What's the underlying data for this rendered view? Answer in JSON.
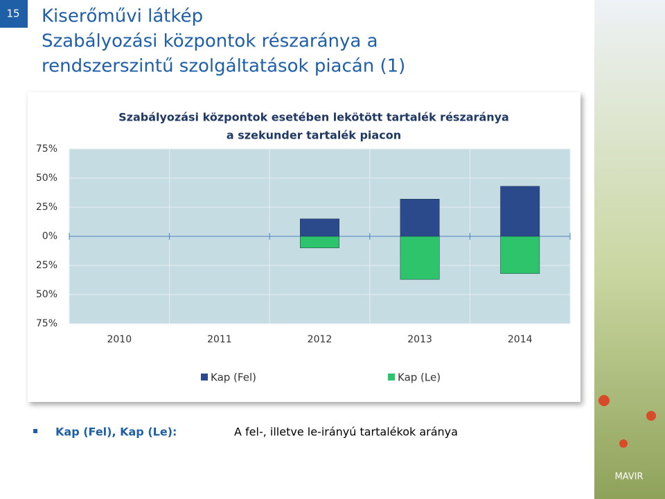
{
  "slide_number": "15",
  "title": [
    "Kiserőművi látkép",
    "Szabályozási központok részaránya a",
    "rendszerszintű szolgáltatások piacán (1)"
  ],
  "chart_data": {
    "type": "bar",
    "title": [
      "Szabályozási központok esetében lekötött tartalék részaránya",
      "a szekunder tartalék piacon"
    ],
    "categories": [
      "2010",
      "2011",
      "2012",
      "2013",
      "2014"
    ],
    "series": [
      {
        "name": "Kap (Fel)",
        "color": "#2b4a8b",
        "values": [
          null,
          null,
          15,
          32,
          43
        ]
      },
      {
        "name": "Kap (Le)",
        "color": "#2ec46c",
        "values": [
          null,
          null,
          -10,
          -37,
          -32
        ]
      }
    ],
    "ylim": [
      -75,
      75
    ],
    "yticks": [
      {
        "value": 75,
        "label": "75%"
      },
      {
        "value": 50,
        "label": "50%"
      },
      {
        "value": 25,
        "label": "25%"
      },
      {
        "value": 0,
        "label": "0%"
      },
      {
        "value": -25,
        "label": "25%"
      },
      {
        "value": -50,
        "label": "50%"
      },
      {
        "value": -75,
        "label": "75%"
      }
    ],
    "grid": true,
    "legend": "bottom"
  },
  "bullet": {
    "term": "Kap (Fel), Kap (Le):",
    "description": "A fel-, illetve le-irányú tartalékok aránya"
  },
  "logo": "MAVIR"
}
